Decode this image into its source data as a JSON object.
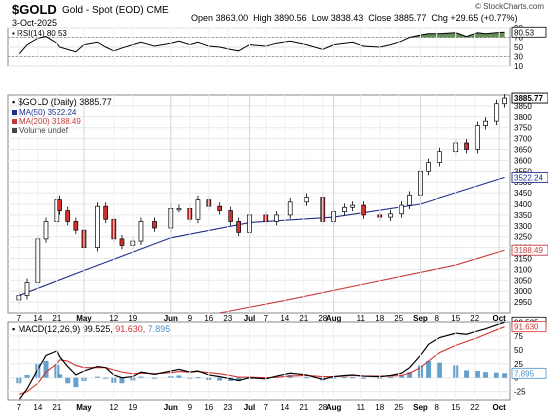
{
  "header": {
    "symbol": "$GOLD",
    "description": "Gold - Spot (EOD) CME",
    "date": "3-Oct-2025",
    "open_label": "Open",
    "open": "3863.00",
    "high_label": "High",
    "high": "3890.56",
    "low_label": "Low",
    "low": "3838.43",
    "close_label": "Close",
    "close": "3885.77",
    "chg_label": "Chg",
    "chg": "+29.65 (+0.77%)",
    "brand": "© StockCharts.com"
  },
  "rsi": {
    "label": "RSI(14) 80.53",
    "value_tag": "80.53",
    "ticks": [
      "90",
      "70",
      "50",
      "30",
      "10"
    ],
    "overbought": 70,
    "oversold": 30,
    "fill_color": "#4a7a3c"
  },
  "price_panel": {
    "title": "$GOLD (Daily) 3885.77",
    "legend": [
      {
        "text": "MA(50) 3522.24",
        "color": "#1f2f8a"
      },
      {
        "text": "MA(200) 3188.49",
        "color": "#c43a3a"
      },
      {
        "text": "Volume undef",
        "color": "#444444"
      }
    ],
    "tags": {
      "close": "3885.77",
      "ma50": "3522.24",
      "ma200": "3188.49"
    },
    "y_ticks": [
      "3850",
      "3800",
      "3750",
      "3700",
      "3650",
      "3600",
      "3550",
      "3500",
      "3450",
      "3400",
      "3350",
      "3300",
      "3250",
      "3200",
      "3150",
      "3100",
      "3050",
      "3000",
      "2950"
    ]
  },
  "macd": {
    "label_prefix": "MACD(12,26,9)",
    "macd_value": "99.525",
    "signal_value": "91.630",
    "hist_value": "7.895",
    "ticks": [
      "75",
      "50",
      "25",
      "0",
      "-25"
    ],
    "macd_color": "#000000",
    "signal_color": "#d0302e",
    "hist_color": "#4a90c4"
  },
  "x_axis": {
    "labels": [
      "7",
      "14",
      "21",
      "May",
      "12",
      "19",
      "Jun",
      "9",
      "16",
      "23",
      "Jul",
      "7",
      "14",
      "21",
      "28",
      "Aug",
      "11",
      "18",
      "25",
      "Sep",
      "8",
      "15",
      "22",
      "Oct"
    ],
    "bold_labels": [
      "May",
      "Jun",
      "Jul",
      "Aug",
      "Sep",
      "Oct"
    ]
  },
  "chart_data": {
    "type": "line",
    "title": "$GOLD (Daily) 3885.77",
    "series": [
      {
        "name": "MA(50) 3522.24",
        "x": [
          "Apr 7",
          "May 1",
          "Jun 2",
          "Jul 1",
          "Aug 1",
          "Sep 2",
          "Oct 3"
        ],
        "values": [
          2980,
          3095,
          3245,
          3315,
          3340,
          3400,
          3522
        ]
      },
      {
        "name": "MA(200) 3188.49",
        "x": [
          "Jun 20",
          "Jul 15",
          "Aug 15",
          "Sep 15",
          "Oct 3"
        ],
        "values": [
          2900,
          2960,
          3040,
          3120,
          3188
        ]
      }
    ],
    "close_path": {
      "x": [
        "Apr 7",
        "Apr 10",
        "Apr 14",
        "Apr 17",
        "Apr 21",
        "Apr 22",
        "Apr 25",
        "Apr 28",
        "May 1",
        "May 6",
        "May 9",
        "May 12",
        "May 15",
        "May 19",
        "May 22",
        "May 27",
        "Jun 2",
        "Jun 5",
        "Jun 9",
        "Jun 12",
        "Jun 16",
        "Jun 20",
        "Jun 24",
        "Jun 27",
        "Jul 1",
        "Jul 7",
        "Jul 11",
        "Jul 16",
        "Jul 22",
        "Jul 28",
        "Aug 1",
        "Aug 5",
        "Aug 8",
        "Aug 12",
        "Aug 18",
        "Aug 22",
        "Aug 26",
        "Aug 29",
        "Sep 2",
        "Sep 5",
        "Sep 9",
        "Sep 15",
        "Sep 19",
        "Sep 23",
        "Sep 26",
        "Sep 30",
        "Oct 3"
      ],
      "values": [
        2980,
        3040,
        3240,
        3320,
        3420,
        3370,
        3320,
        3280,
        3200,
        3390,
        3330,
        3240,
        3210,
        3230,
        3320,
        3290,
        3380,
        3380,
        3330,
        3420,
        3390,
        3370,
        3320,
        3270,
        3350,
        3320,
        3350,
        3410,
        3430,
        3320,
        3365,
        3385,
        3395,
        3350,
        3340,
        3355,
        3395,
        3440,
        3550,
        3590,
        3640,
        3680,
        3650,
        3760,
        3780,
        3860,
        3886
      ]
    },
    "ylim": [
      2900,
      3900
    ],
    "ylabel": "",
    "rsi_values": [
      35,
      55,
      68,
      72,
      58,
      50,
      45,
      40,
      55,
      60,
      50,
      42,
      48,
      55,
      60,
      52,
      58,
      62,
      55,
      60,
      52,
      50,
      45,
      42,
      55,
      52,
      58,
      62,
      55,
      45,
      55,
      58,
      60,
      52,
      50,
      55,
      62,
      70,
      75,
      78,
      78,
      80,
      72,
      80,
      78,
      80,
      81
    ],
    "macd_values": [
      -40,
      -20,
      15,
      40,
      48,
      38,
      20,
      5,
      12,
      20,
      18,
      5,
      0,
      2,
      10,
      6,
      12,
      15,
      10,
      12,
      5,
      2,
      -2,
      -5,
      0,
      -2,
      3,
      8,
      5,
      -3,
      2,
      4,
      5,
      3,
      2,
      4,
      8,
      18,
      40,
      60,
      72,
      80,
      78,
      84,
      88,
      95,
      99.5
    ],
    "signal_values": [
      -30,
      -25,
      -10,
      10,
      25,
      32,
      30,
      22,
      18,
      18,
      18,
      14,
      10,
      7,
      8,
      7,
      9,
      11,
      10,
      11,
      9,
      7,
      4,
      1,
      1,
      0,
      1,
      3,
      4,
      2,
      2,
      3,
      4,
      3,
      3,
      3,
      4,
      8,
      18,
      30,
      45,
      58,
      65,
      72,
      78,
      86,
      91.6
    ]
  }
}
